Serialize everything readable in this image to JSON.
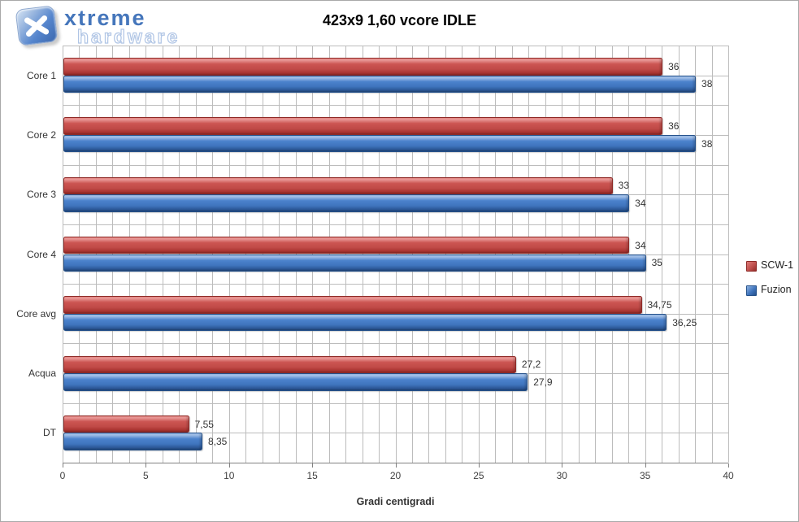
{
  "logo": {
    "brand_top": "xtreme",
    "brand_bottom": "hardware"
  },
  "chart_data": {
    "type": "bar",
    "orientation": "horizontal",
    "title": "423x9 1,60 vcore IDLE",
    "xlabel": "Gradi centigradi",
    "categories": [
      "Core 1",
      "Core 2",
      "Core 3",
      "Core 4",
      "Core avg",
      "Acqua",
      "DT"
    ],
    "series": [
      {
        "name": "SCW-1",
        "color": "#C0504D",
        "values": [
          36,
          36,
          33,
          34,
          34.75,
          27.2,
          7.55
        ],
        "labels": [
          "36",
          "36",
          "33",
          "34",
          "34,75",
          "27,2",
          "7,55"
        ]
      },
      {
        "name": "Fuzion",
        "color": "#4F81BD",
        "values": [
          38,
          38,
          34,
          35,
          36.25,
          27.9,
          8.35
        ],
        "labels": [
          "38",
          "38",
          "34",
          "35",
          "36,25",
          "27,9",
          "8,35"
        ]
      }
    ],
    "xlim": [
      0,
      40
    ],
    "x_ticks": [
      "0",
      "5",
      "10",
      "15",
      "20",
      "25",
      "30",
      "35",
      "40"
    ],
    "x_tick_step": 5,
    "grid": {
      "vertical_every_units": 1,
      "horizontal": "half-category",
      "color": "#bcbcbc"
    },
    "legend_position": "right"
  }
}
